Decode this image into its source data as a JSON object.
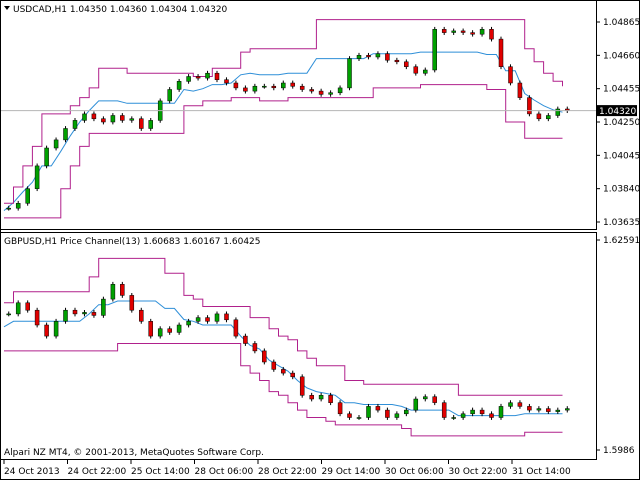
{
  "window": {
    "copyright": "Alpari NZ MT4, © 2001-2013, MetaQuotes Software Corp."
  },
  "top_panel": {
    "title": "USDCAD,H1  1.04350  1.04360  1.04304  1.04320",
    "y_ticks": [
      "1.04865",
      "1.04660",
      "1.04455",
      "1.04250",
      "1.04045",
      "1.03840",
      "1.03635"
    ],
    "y_tick_values": [
      1.04865,
      1.0466,
      1.04455,
      1.0425,
      1.04045,
      1.0384,
      1.03635
    ],
    "current_price_label": "1.04320",
    "current_price": 1.0432
  },
  "bottom_panel": {
    "title": "GBPUSD,H1  Price Channel(13)  1.60683  1.60167  1.60425",
    "y_ticks": [
      "1.62591",
      "1.5986"
    ],
    "y_tick_values": [
      1.62591,
      1.5986
    ]
  },
  "x_axis": {
    "labels": [
      "24 Oct 2013",
      "24 Oct 22:00",
      "25 Oct 14:00",
      "28 Oct 06:00",
      "28 Oct 22:00",
      "29 Oct 14:00",
      "30 Oct 06:00",
      "30 Oct 22:00",
      "31 Oct 14:00"
    ]
  },
  "colors": {
    "bull_candle": "#00a000",
    "bear_candle": "#e00000",
    "channel_line": "#b0208c",
    "middle_line": "#2f8fd8",
    "price_line": "#b5b5b5",
    "bear_candle_top": "#000000"
  },
  "chart_data": [
    {
      "type": "candlestick",
      "symbol": "USDCAD",
      "timeframe": "H1",
      "ylim": [
        1.03635,
        1.04865
      ],
      "open": 1.0435,
      "high": 1.0436,
      "low": 1.04304,
      "close": 1.0432,
      "close_series": [
        1.0372,
        1.0375,
        1.0384,
        1.0398,
        1.0409,
        1.0414,
        1.0421,
        1.0426,
        1.043,
        1.0427,
        1.0425,
        1.0429,
        1.0426,
        1.0427,
        1.0421,
        1.0426,
        1.0438,
        1.0445,
        1.045,
        1.0453,
        1.0452,
        1.0455,
        1.0451,
        1.0449,
        1.0446,
        1.0444,
        1.0447,
        1.0447,
        1.0446,
        1.0449,
        1.0447,
        1.0445,
        1.0444,
        1.0442,
        1.0443,
        1.0446,
        1.0464,
        1.0466,
        1.0465,
        1.0467,
        1.0463,
        1.0462,
        1.0459,
        1.0455,
        1.0457,
        1.0482,
        1.048,
        1.0481,
        1.048,
        1.0479,
        1.0482,
        1.0476,
        1.0459,
        1.0449,
        1.044,
        1.043,
        1.0427,
        1.0429,
        1.0433,
        1.0432
      ],
      "channel_upper": [
        1.0375,
        1.0385,
        1.0398,
        1.041,
        1.043,
        1.043,
        1.043,
        1.0435,
        1.044,
        1.0446,
        1.0458,
        1.0458,
        1.0458,
        1.0455,
        1.0455,
        1.0455,
        1.0455,
        1.0455,
        1.0455,
        1.0455,
        1.0453,
        1.0453,
        1.0458,
        1.0458,
        1.0458,
        1.0468,
        1.047,
        1.047,
        1.047,
        1.047,
        1.047,
        1.047,
        1.047,
        1.0488,
        1.0488,
        1.0488,
        1.0488,
        1.0488,
        1.0488,
        1.0488,
        1.0488,
        1.0488,
        1.0488,
        1.0488,
        1.0488,
        1.0488,
        1.0488,
        1.0488,
        1.0488,
        1.0488,
        1.0488,
        1.0488,
        1.0488,
        1.0488,
        1.0488,
        1.047,
        1.0462,
        1.0455,
        1.045,
        1.0447
      ],
      "channel_lower": [
        1.0366,
        1.0366,
        1.0366,
        1.0366,
        1.0366,
        1.0366,
        1.0384,
        1.0398,
        1.041,
        1.0418,
        1.0418,
        1.0418,
        1.0418,
        1.0418,
        1.0418,
        1.0418,
        1.0418,
        1.0418,
        1.0418,
        1.0435,
        1.0435,
        1.0438,
        1.0438,
        1.0438,
        1.044,
        1.044,
        1.044,
        1.0438,
        1.0438,
        1.0438,
        1.044,
        1.044,
        1.044,
        1.044,
        1.044,
        1.044,
        1.044,
        1.044,
        1.044,
        1.0446,
        1.0446,
        1.0446,
        1.0446,
        1.0446,
        1.0448,
        1.0448,
        1.0448,
        1.0448,
        1.0448,
        1.0448,
        1.0448,
        1.0445,
        1.0445,
        1.0425,
        1.0425,
        1.0415,
        1.0415,
        1.0415,
        1.0415,
        1.0415
      ]
    },
    {
      "type": "candlestick",
      "symbol": "GBPUSD",
      "timeframe": "H1",
      "indicator": "Price Channel(13)",
      "ylim": [
        1.5986,
        1.62591
      ],
      "values": [
        1.60683,
        1.60167,
        1.60425
      ],
      "close_series": [
        1.617,
        1.6185,
        1.6175,
        1.6155,
        1.614,
        1.616,
        1.6175,
        1.617,
        1.6172,
        1.6168,
        1.619,
        1.621,
        1.6195,
        1.6175,
        1.616,
        1.614,
        1.615,
        1.6145,
        1.6155,
        1.616,
        1.6165,
        1.616,
        1.617,
        1.6162,
        1.614,
        1.613,
        1.612,
        1.6105,
        1.6095,
        1.609,
        1.6085,
        1.606,
        1.6055,
        1.606,
        1.605,
        1.6035,
        1.603,
        1.603,
        1.6045,
        1.604,
        1.603,
        1.6035,
        1.604,
        1.6055,
        1.6058,
        1.605,
        1.603,
        1.603,
        1.6035,
        1.604,
        1.6035,
        1.603,
        1.6045,
        1.605,
        1.6045,
        1.604,
        1.6042,
        1.6038,
        1.604,
        1.6042
      ],
      "channel_upper": [
        1.6185,
        1.62,
        1.62,
        1.62,
        1.62,
        1.62,
        1.62,
        1.62,
        1.62,
        1.622,
        1.6245,
        1.6245,
        1.6245,
        1.6245,
        1.6245,
        1.6245,
        1.6245,
        1.6225,
        1.6225,
        1.6195,
        1.619,
        1.618,
        1.618,
        1.618,
        1.618,
        1.618,
        1.6165,
        1.6165,
        1.615,
        1.614,
        1.6135,
        1.612,
        1.611,
        1.61,
        1.61,
        1.61,
        1.608,
        1.608,
        1.6075,
        1.6075,
        1.6075,
        1.6075,
        1.6075,
        1.6075,
        1.6075,
        1.6075,
        1.6075,
        1.6075,
        1.606,
        1.606,
        1.606,
        1.606,
        1.606,
        1.606,
        1.606,
        1.606,
        1.606,
        1.606,
        1.606,
        1.606
      ],
      "channel_lower": [
        1.612,
        1.612,
        1.612,
        1.612,
        1.612,
        1.612,
        1.612,
        1.612,
        1.612,
        1.612,
        1.612,
        1.612,
        1.613,
        1.613,
        1.613,
        1.613,
        1.613,
        1.613,
        1.613,
        1.613,
        1.613,
        1.613,
        1.613,
        1.613,
        1.613,
        1.61,
        1.609,
        1.608,
        1.6065,
        1.606,
        1.605,
        1.604,
        1.603,
        1.603,
        1.6025,
        1.602,
        1.602,
        1.602,
        1.602,
        1.602,
        1.602,
        1.602,
        1.6015,
        1.6005,
        1.6005,
        1.6005,
        1.6005,
        1.6005,
        1.6005,
        1.6005,
        1.6005,
        1.6005,
        1.6005,
        1.6005,
        1.6005,
        1.601,
        1.601,
        1.601,
        1.601,
        1.601
      ]
    }
  ]
}
